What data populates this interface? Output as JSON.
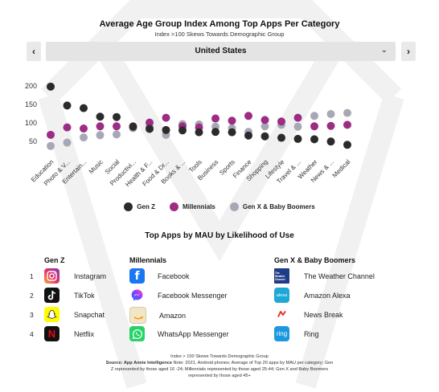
{
  "title": "Average Age Group Index Among Top Apps Per Category",
  "subtitle": "Index  >100 Skews Towards Demographic Group",
  "nav": {
    "prev": "‹",
    "next": "›",
    "selected": "United States",
    "chevron": "⌄"
  },
  "colors": {
    "genz": "#2b2b2b",
    "millennials": "#9c2c84",
    "genx": "#a6a8b6",
    "watermark": "#f2f2f2"
  },
  "chart_data": {
    "type": "scatter",
    "categories": [
      "Education",
      "Photo & V...",
      "Entertain...",
      "Music",
      "Social",
      "Productivi...",
      "Health & F...",
      "Food & Dr...",
      "Books & ...",
      "Tools",
      "Business",
      "Sports",
      "Finance",
      "Shopping",
      "Lifestyle",
      "Travel & ...",
      "Weather",
      "News & ...",
      "Medical"
    ],
    "yticks": [
      50,
      100,
      150,
      200
    ],
    "ylim": [
      20,
      215
    ],
    "series": [
      {
        "name": "Gen Z",
        "color": "#2b2b2b",
        "values": [
          198,
          147,
          140,
          117,
          116,
          90,
          84,
          81,
          80,
          75,
          76,
          75,
          66,
          64,
          60,
          57,
          56,
          50,
          41
        ]
      },
      {
        "name": "Millennials",
        "color": "#9c2c84",
        "values": [
          68,
          88,
          85,
          91,
          91,
          91,
          101,
          114,
          91,
          88,
          112,
          106,
          119,
          108,
          104,
          114,
          91,
          92,
          95
        ]
      },
      {
        "name": "Gen X & Baby Boomers",
        "color": "#a6a8b6",
        "values": [
          38,
          47,
          61,
          67,
          69,
          86,
          89,
          68,
          97,
          96,
          90,
          86,
          76,
          91,
          95,
          90,
          119,
          124,
          127
        ]
      }
    ]
  },
  "legend": [
    "Gen Z",
    "Millennials",
    "Gen X & Baby Boomers"
  ],
  "top_apps": {
    "title": "Top Apps by MAU by Likelihood of Use",
    "headers": [
      "Gen Z",
      "Millennials",
      "Gen X & Baby Boomers"
    ],
    "ranks": [
      "1",
      "2",
      "3",
      "4"
    ],
    "genz": [
      {
        "name": "Instagram",
        "icon": "instagram-icon"
      },
      {
        "name": "TikTok",
        "icon": "tiktok-icon"
      },
      {
        "name": "Snapchat",
        "icon": "snapchat-icon"
      },
      {
        "name": "Netflix",
        "icon": "netflix-icon"
      }
    ],
    "millennials": [
      {
        "name": "Facebook",
        "icon": "facebook-icon"
      },
      {
        "name": "Facebook Messenger",
        "icon": "messenger-icon"
      },
      {
        "name": "Amazon",
        "icon": "amazon-icon"
      },
      {
        "name": "WhatsApp Messenger",
        "icon": "whatsapp-icon"
      }
    ],
    "genx": [
      {
        "name": "The Weather Channel",
        "icon": "weather-channel-icon"
      },
      {
        "name": "Amazon Alexa",
        "icon": "alexa-icon"
      },
      {
        "name": "News Break",
        "icon": "newsbreak-icon"
      },
      {
        "name": "Ring",
        "icon": "ring-icon"
      }
    ]
  },
  "icon_text": {
    "weather": "The Weather Channel",
    "alexa": "alexa",
    "ring": "ring",
    "netflix": "N",
    "facebook": "f"
  },
  "footnote": {
    "line1": "Index > 100 Skews Towards Demographic Group",
    "source_label": "Source: App Annie Intelligence",
    "source_text": " Note: 2021, Android phones; Average of Top 20 apps by MAU per category; Gen Z represented by those aged 16 -24; Millennials represented by those aged 25-44; Gen X and Baby Boomers represented by those aged 45+"
  }
}
